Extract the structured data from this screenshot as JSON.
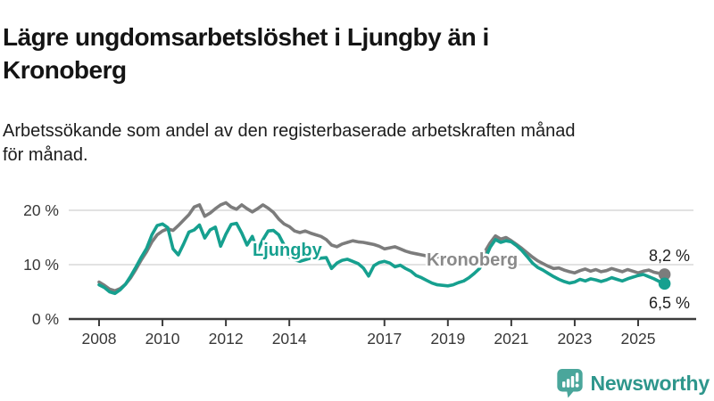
{
  "header": {
    "title": "Lägre ungdomsarbetslöshet i Ljungby än i Kronoberg",
    "title_lines": [
      "Lägre ungdomsarbetslöshet i Ljungby än i",
      "Kronoberg"
    ],
    "subtitle": "Arbetssökande som andel av den registerbaserade arbetskraften månad för månad.",
    "subtitle_lines": [
      "Arbetssökande som andel av den registerbaserade arbetskraften månad",
      "för månad."
    ]
  },
  "chart_data": {
    "type": "line",
    "title": "Lägre ungdomsarbetslöshet i Ljungby än i Kronoberg",
    "unit": "percent",
    "x_start": 2008.0,
    "x_step_years": 0.166667,
    "x_ticks": [
      2008,
      2010,
      2012,
      2014,
      2017,
      2019,
      2021,
      2023,
      2025
    ],
    "x_tick_labels": [
      "2008",
      "2010",
      "2012",
      "2014",
      "2017",
      "2019",
      "2021",
      "2023",
      "2025"
    ],
    "xlim": [
      2007.1,
      2026.8
    ],
    "y_ticks": [
      0,
      10,
      20
    ],
    "y_tick_labels": [
      "0 %",
      "10 %",
      "20 %"
    ],
    "ylim": [
      0,
      24
    ],
    "grid": "horizontal",
    "legend_position": "inline-labels-on-lines",
    "series": [
      {
        "name": "Kronoberg",
        "color": "#7c7c7c",
        "label_color": "#8a8a8a",
        "end_label": "8,2 %",
        "end_value": 8.2,
        "values": [
          6.8,
          6.2,
          5.5,
          5.2,
          5.6,
          6.4,
          7.6,
          9.2,
          10.9,
          12.4,
          14.2,
          15.5,
          16.2,
          16.6,
          16.3,
          17.2,
          18.2,
          19.2,
          20.6,
          21.0,
          18.9,
          19.5,
          20.3,
          21.0,
          21.4,
          20.6,
          20.2,
          21.0,
          20.3,
          19.7,
          20.3,
          21.0,
          20.4,
          19.6,
          18.4,
          17.5,
          17.0,
          16.2,
          15.9,
          16.2,
          15.8,
          15.5,
          15.2,
          14.6,
          13.6,
          13.3,
          13.8,
          14.1,
          14.4,
          14.2,
          14.1,
          13.9,
          13.7,
          13.4,
          12.9,
          13.1,
          13.3,
          12.9,
          12.5,
          12.2,
          12.0,
          11.8,
          11.6,
          11.4,
          11.5,
          11.2,
          10.8,
          10.5,
          10.3,
          10.1,
          10.0,
          10.3,
          10.9,
          12.4,
          14.0,
          15.3,
          14.7,
          15.0,
          14.4,
          13.7,
          13.0,
          12.2,
          11.4,
          10.7,
          10.2,
          9.7,
          9.3,
          9.4,
          9.0,
          8.7,
          8.5,
          8.9,
          9.2,
          8.8,
          9.1,
          8.7,
          8.9,
          9.3,
          9.0,
          8.7,
          9.1,
          8.8,
          8.5,
          8.8,
          9.0,
          8.6,
          8.4,
          8.2
        ]
      },
      {
        "name": "Ljungby",
        "color": "#16a08f",
        "label_color": "#16a08f",
        "end_label": "6,5 %",
        "end_value": 6.5,
        "values": [
          6.3,
          5.8,
          5.0,
          4.7,
          5.4,
          6.4,
          7.9,
          9.6,
          11.4,
          13.0,
          15.5,
          17.2,
          17.5,
          16.8,
          12.9,
          11.8,
          13.8,
          16.0,
          16.4,
          17.3,
          14.9,
          16.4,
          16.9,
          13.4,
          15.6,
          17.4,
          17.6,
          15.8,
          13.6,
          15.2,
          12.5,
          14.6,
          16.2,
          16.3,
          15.5,
          13.6,
          11.4,
          10.9,
          10.6,
          10.9,
          11.2,
          11.0,
          11.2,
          11.3,
          9.3,
          10.3,
          10.8,
          11.0,
          10.6,
          10.2,
          9.4,
          7.9,
          9.8,
          10.4,
          10.6,
          10.3,
          9.6,
          9.9,
          9.3,
          8.8,
          8.0,
          7.6,
          7.1,
          6.6,
          6.3,
          6.2,
          6.1,
          6.3,
          6.7,
          7.0,
          7.6,
          8.4,
          9.3,
          11.0,
          13.2,
          14.6,
          14.1,
          14.4,
          14.2,
          13.5,
          12.6,
          11.5,
          10.3,
          9.5,
          9.0,
          8.4,
          7.8,
          7.3,
          6.9,
          6.6,
          6.8,
          7.3,
          7.0,
          7.4,
          7.2,
          6.9,
          7.2,
          7.6,
          7.3,
          7.0,
          7.4,
          7.7,
          8.0,
          8.2,
          7.8,
          7.4,
          6.9,
          6.5
        ]
      }
    ]
  },
  "footer": {
    "brand": "Newsworthy"
  },
  "colors": {
    "accent_teal": "#16a08f",
    "series_gray": "#7c7c7c",
    "grid_gray": "#d9d9d9",
    "axis_dark": "#3c3c3c",
    "brand_icon_teal": "#4aa69b",
    "brand_text_teal": "#2e968c"
  }
}
